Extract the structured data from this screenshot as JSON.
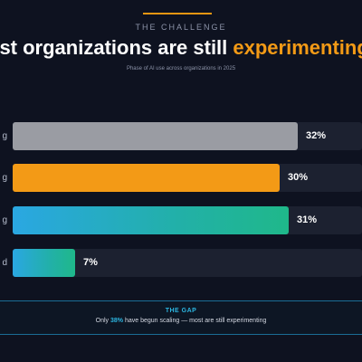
{
  "header": {
    "eyebrow": "THE CHALLENGE",
    "title_main": "ost organizations are still ",
    "title_accent": "experimenting",
    "subtitle": "Phase of AI use across organizations in 2025"
  },
  "colors": {
    "background": "#0e1220",
    "accent_orange": "#f39a16",
    "accent_blue": "#2cb5e0"
  },
  "chart_data": {
    "type": "bar",
    "orientation": "horizontal",
    "title": "Most organizations are still experimenting",
    "subtitle": "Phase of AI use across organizations in 2025",
    "categories_visible_fragments": [
      "g",
      "g",
      "g",
      "d"
    ],
    "values": [
      32,
      30,
      31,
      7
    ],
    "value_labels": [
      "32%",
      "30%",
      "31%",
      "7%"
    ],
    "bar_colors": [
      "#9a9ca3",
      "#f39a16",
      "gradient-blue-teal",
      "gradient-blue-teal"
    ],
    "xlim": [
      0,
      100
    ],
    "grid": false,
    "legend": "none"
  },
  "gap": {
    "title": "THE GAP",
    "text_before": "Only ",
    "highlight": "38%",
    "text_after": " have begun scaling — most are still experimenting"
  }
}
